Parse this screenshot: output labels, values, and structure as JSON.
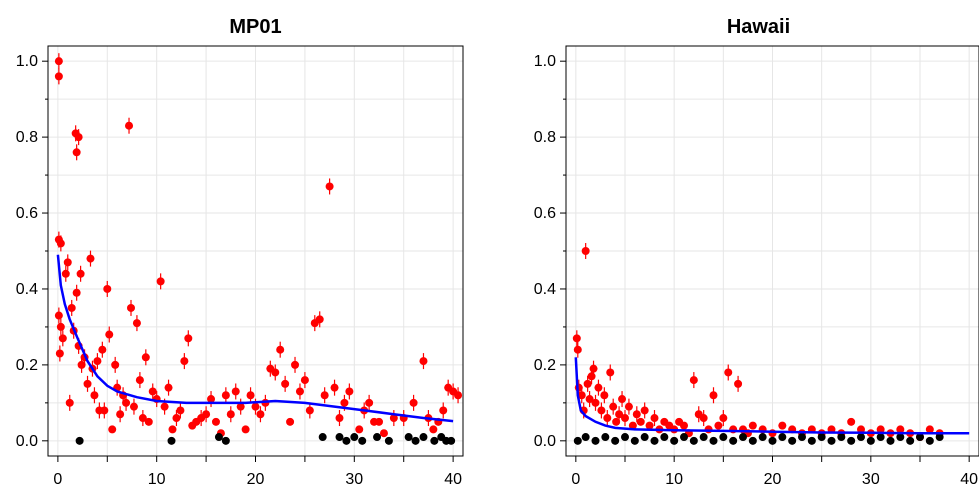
{
  "chart_data": [
    {
      "type": "scatter",
      "title": "MP01",
      "xlabel": "",
      "ylabel": "",
      "xlim": [
        -1,
        41
      ],
      "ylim": [
        -0.04,
        1.04
      ],
      "xticks": [
        0,
        10,
        20,
        30,
        40
      ],
      "yticks": [
        0.0,
        0.2,
        0.4,
        0.6,
        0.8,
        1.0
      ],
      "ytick_labels": [
        "0.0",
        "0.2",
        "0.4",
        "0.6",
        "0.8",
        "1.0"
      ],
      "grid": true,
      "colors": {
        "positive": "#ff0000",
        "zero": "#000000",
        "fit": "#0000ff"
      },
      "series": [
        {
          "kind": "points",
          "color": "#ff0000",
          "points": [
            [
              0.1,
              1.0
            ],
            [
              0.1,
              0.96
            ],
            [
              0.1,
              0.53
            ],
            [
              0.3,
              0.52
            ],
            [
              0.1,
              0.33
            ],
            [
              0.3,
              0.3
            ],
            [
              0.2,
              0.23
            ],
            [
              0.5,
              0.27
            ],
            [
              0.8,
              0.44
            ],
            [
              1.0,
              0.47
            ],
            [
              1.2,
              0.1
            ],
            [
              1.4,
              0.35
            ],
            [
              1.6,
              0.29
            ],
            [
              1.8,
              0.81
            ],
            [
              1.9,
              0.76
            ],
            [
              2.1,
              0.8
            ],
            [
              2.3,
              0.44
            ],
            [
              1.9,
              0.39
            ],
            [
              2.1,
              0.25
            ],
            [
              2.4,
              0.2
            ],
            [
              2.7,
              0.22
            ],
            [
              3.0,
              0.15
            ],
            [
              3.3,
              0.48
            ],
            [
              3.5,
              0.19
            ],
            [
              3.7,
              0.12
            ],
            [
              4.0,
              0.21
            ],
            [
              4.2,
              0.08
            ],
            [
              4.5,
              0.24
            ],
            [
              4.7,
              0.08
            ],
            [
              5.0,
              0.4
            ],
            [
              5.2,
              0.28
            ],
            [
              5.5,
              0.03
            ],
            [
              5.8,
              0.2
            ],
            [
              6.0,
              0.14
            ],
            [
              6.3,
              0.07
            ],
            [
              6.6,
              0.12
            ],
            [
              6.9,
              0.1
            ],
            [
              7.2,
              0.83
            ],
            [
              7.4,
              0.35
            ],
            [
              7.7,
              0.09
            ],
            [
              8.0,
              0.31
            ],
            [
              8.3,
              0.16
            ],
            [
              8.6,
              0.06
            ],
            [
              8.9,
              0.22
            ],
            [
              9.2,
              0.05
            ],
            [
              9.6,
              0.13
            ],
            [
              10.0,
              0.11
            ],
            [
              10.4,
              0.42
            ],
            [
              10.8,
              0.09
            ],
            [
              11.2,
              0.14
            ],
            [
              11.6,
              0.03
            ],
            [
              12.0,
              0.06
            ],
            [
              12.4,
              0.08
            ],
            [
              12.8,
              0.21
            ],
            [
              13.2,
              0.27
            ],
            [
              13.6,
              0.04
            ],
            [
              14.0,
              0.05
            ],
            [
              14.5,
              0.06
            ],
            [
              15.0,
              0.07
            ],
            [
              15.5,
              0.11
            ],
            [
              16.0,
              0.05
            ],
            [
              16.5,
              0.02
            ],
            [
              17.0,
              0.12
            ],
            [
              17.5,
              0.07
            ],
            [
              18.0,
              0.13
            ],
            [
              18.5,
              0.09
            ],
            [
              19.0,
              0.03
            ],
            [
              19.5,
              0.12
            ],
            [
              20.0,
              0.09
            ],
            [
              20.5,
              0.07
            ],
            [
              21.0,
              0.1
            ],
            [
              21.5,
              0.19
            ],
            [
              22.0,
              0.18
            ],
            [
              22.5,
              0.24
            ],
            [
              23.0,
              0.15
            ],
            [
              23.5,
              0.05
            ],
            [
              24.0,
              0.2
            ],
            [
              24.5,
              0.13
            ],
            [
              25.0,
              0.16
            ],
            [
              25.5,
              0.08
            ],
            [
              26.0,
              0.31
            ],
            [
              26.5,
              0.32
            ],
            [
              27.0,
              0.12
            ],
            [
              27.5,
              0.67
            ],
            [
              28.0,
              0.14
            ],
            [
              28.5,
              0.06
            ],
            [
              29.0,
              0.1
            ],
            [
              29.5,
              0.13
            ],
            [
              30.5,
              0.03
            ],
            [
              31.0,
              0.08
            ],
            [
              31.5,
              0.1
            ],
            [
              32.0,
              0.05
            ],
            [
              32.5,
              0.05
            ],
            [
              33.0,
              0.02
            ],
            [
              34.0,
              0.06
            ],
            [
              35.0,
              0.06
            ],
            [
              36.0,
              0.1
            ],
            [
              37.0,
              0.21
            ],
            [
              37.5,
              0.06
            ],
            [
              38.0,
              0.03
            ],
            [
              38.5,
              0.05
            ],
            [
              39.0,
              0.08
            ],
            [
              39.5,
              0.14
            ],
            [
              40.0,
              0.13
            ],
            [
              40.5,
              0.12
            ]
          ]
        },
        {
          "kind": "points",
          "color": "#000000",
          "points": [
            [
              2.2,
              0.0
            ],
            [
              11.5,
              0.0
            ],
            [
              16.3,
              0.01
            ],
            [
              17.0,
              0.0
            ],
            [
              26.8,
              0.01
            ],
            [
              28.5,
              0.01
            ],
            [
              29.2,
              0.0
            ],
            [
              30.0,
              0.01
            ],
            [
              30.8,
              0.0
            ],
            [
              32.3,
              0.01
            ],
            [
              33.5,
              0.0
            ],
            [
              35.5,
              0.01
            ],
            [
              36.2,
              0.0
            ],
            [
              37.0,
              0.01
            ],
            [
              38.1,
              0.0
            ],
            [
              38.8,
              0.01
            ],
            [
              39.3,
              0.0
            ],
            [
              39.8,
              0.0
            ]
          ]
        },
        {
          "kind": "line",
          "color": "#0000ff",
          "points": [
            [
              0,
              0.49
            ],
            [
              0.3,
              0.41
            ],
            [
              0.7,
              0.36
            ],
            [
              1.2,
              0.32
            ],
            [
              2,
              0.27
            ],
            [
              3,
              0.21
            ],
            [
              4,
              0.17
            ],
            [
              5,
              0.145
            ],
            [
              6,
              0.13
            ],
            [
              8,
              0.115
            ],
            [
              10,
              0.105
            ],
            [
              13,
              0.1
            ],
            [
              16,
              0.1
            ],
            [
              19,
              0.1
            ],
            [
              22,
              0.105
            ],
            [
              25,
              0.1
            ],
            [
              28,
              0.09
            ],
            [
              31,
              0.08
            ],
            [
              34,
              0.07
            ],
            [
              37,
              0.06
            ],
            [
              40,
              0.052
            ]
          ]
        }
      ]
    },
    {
      "type": "scatter",
      "title": "Hawaii",
      "xlabel": "",
      "ylabel": "",
      "xlim": [
        -1,
        41
      ],
      "ylim": [
        -0.04,
        1.04
      ],
      "xticks": [
        0,
        10,
        20,
        30,
        40
      ],
      "yticks": [
        0.0,
        0.2,
        0.4,
        0.6,
        0.8,
        1.0
      ],
      "ytick_labels": [
        "0.0",
        "0.2",
        "0.4",
        "0.6",
        "0.8",
        "1.0"
      ],
      "grid": true,
      "colors": {
        "positive": "#ff0000",
        "zero": "#000000",
        "fit": "#0000ff"
      },
      "series": [
        {
          "kind": "points",
          "color": "#ff0000",
          "points": [
            [
              0.1,
              0.27
            ],
            [
              0.2,
              0.24
            ],
            [
              0.3,
              0.14
            ],
            [
              0.6,
              0.12
            ],
            [
              0.8,
              0.08
            ],
            [
              1.0,
              0.5
            ],
            [
              1.2,
              0.15
            ],
            [
              1.4,
              0.11
            ],
            [
              1.6,
              0.17
            ],
            [
              1.8,
              0.19
            ],
            [
              2.0,
              0.1
            ],
            [
              2.3,
              0.14
            ],
            [
              2.6,
              0.08
            ],
            [
              2.9,
              0.12
            ],
            [
              3.2,
              0.06
            ],
            [
              3.5,
              0.18
            ],
            [
              3.8,
              0.09
            ],
            [
              4.1,
              0.05
            ],
            [
              4.4,
              0.07
            ],
            [
              4.7,
              0.11
            ],
            [
              5.0,
              0.06
            ],
            [
              5.4,
              0.09
            ],
            [
              5.8,
              0.04
            ],
            [
              6.2,
              0.07
            ],
            [
              6.6,
              0.05
            ],
            [
              7.0,
              0.08
            ],
            [
              7.5,
              0.04
            ],
            [
              8.0,
              0.06
            ],
            [
              8.5,
              0.03
            ],
            [
              9.0,
              0.05
            ],
            [
              9.5,
              0.04
            ],
            [
              10.0,
              0.03
            ],
            [
              10.5,
              0.05
            ],
            [
              11.0,
              0.04
            ],
            [
              11.5,
              0.02
            ],
            [
              12.0,
              0.16
            ],
            [
              12.5,
              0.07
            ],
            [
              13.0,
              0.06
            ],
            [
              13.5,
              0.03
            ],
            [
              14.0,
              0.12
            ],
            [
              14.5,
              0.04
            ],
            [
              15.0,
              0.06
            ],
            [
              15.5,
              0.18
            ],
            [
              16.0,
              0.03
            ],
            [
              16.5,
              0.15
            ],
            [
              17.0,
              0.03
            ],
            [
              17.5,
              0.02
            ],
            [
              18.0,
              0.04
            ],
            [
              19.0,
              0.03
            ],
            [
              20.0,
              0.02
            ],
            [
              21.0,
              0.04
            ],
            [
              22.0,
              0.03
            ],
            [
              23.0,
              0.02
            ],
            [
              24.0,
              0.03
            ],
            [
              25.0,
              0.02
            ],
            [
              26.0,
              0.03
            ],
            [
              27.0,
              0.02
            ],
            [
              28.0,
              0.05
            ],
            [
              29.0,
              0.03
            ],
            [
              30.0,
              0.02
            ],
            [
              31.0,
              0.03
            ],
            [
              32.0,
              0.02
            ],
            [
              33.0,
              0.03
            ],
            [
              34.0,
              0.02
            ],
            [
              35.0,
              0.01
            ],
            [
              36.0,
              0.03
            ],
            [
              37.0,
              0.02
            ]
          ]
        },
        {
          "kind": "points",
          "color": "#000000",
          "points": [
            [
              0.2,
              0.0
            ],
            [
              1.0,
              0.01
            ],
            [
              2.0,
              0.0
            ],
            [
              3.0,
              0.01
            ],
            [
              4.0,
              0.0
            ],
            [
              5.0,
              0.01
            ],
            [
              6.0,
              0.0
            ],
            [
              7.0,
              0.01
            ],
            [
              8.0,
              0.0
            ],
            [
              9.0,
              0.01
            ],
            [
              10.0,
              0.0
            ],
            [
              11.0,
              0.01
            ],
            [
              12.0,
              0.0
            ],
            [
              13.0,
              0.01
            ],
            [
              14.0,
              0.0
            ],
            [
              15.0,
              0.01
            ],
            [
              16.0,
              0.0
            ],
            [
              17.0,
              0.01
            ],
            [
              18.0,
              0.0
            ],
            [
              19.0,
              0.01
            ],
            [
              20.0,
              0.0
            ],
            [
              21.0,
              0.01
            ],
            [
              22.0,
              0.0
            ],
            [
              23.0,
              0.01
            ],
            [
              24.0,
              0.0
            ],
            [
              25.0,
              0.01
            ],
            [
              26.0,
              0.0
            ],
            [
              27.0,
              0.01
            ],
            [
              28.0,
              0.0
            ],
            [
              29.0,
              0.01
            ],
            [
              30.0,
              0.0
            ],
            [
              31.0,
              0.01
            ],
            [
              32.0,
              0.0
            ],
            [
              33.0,
              0.01
            ],
            [
              34.0,
              0.0
            ],
            [
              35.0,
              0.01
            ],
            [
              36.0,
              0.0
            ],
            [
              37.0,
              0.01
            ]
          ]
        },
        {
          "kind": "line",
          "color": "#0000ff",
          "points": [
            [
              0,
              0.22
            ],
            [
              0.2,
              0.12
            ],
            [
              0.5,
              0.08
            ],
            [
              1,
              0.065
            ],
            [
              2,
              0.05
            ],
            [
              3,
              0.04
            ],
            [
              4,
              0.034
            ],
            [
              6,
              0.03
            ],
            [
              10,
              0.028
            ],
            [
              15,
              0.026
            ],
            [
              20,
              0.024
            ],
            [
              25,
              0.022
            ],
            [
              30,
              0.021
            ],
            [
              35,
              0.02
            ],
            [
              40,
              0.02
            ]
          ]
        }
      ]
    }
  ]
}
